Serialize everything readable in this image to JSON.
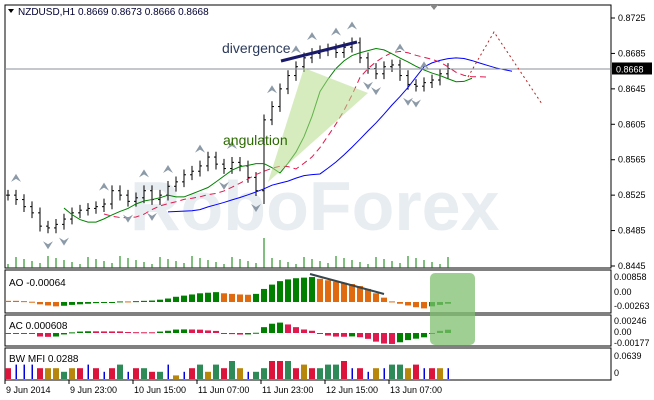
{
  "header": {
    "symbol": "NZDUSD,H1",
    "ohlc": "0.8669 0.8673 0.8666 0.8668"
  },
  "watermark": "RoboForex",
  "colors": {
    "bull_ao": "#007f00",
    "bear_ao": "#e06a10",
    "ac_up": "#007f00",
    "ac_down": "#e01a4f",
    "jaw": "#0000ff",
    "teeth": "#e01a4f",
    "lips": "#008000",
    "highlight": "#7fbf6f"
  },
  "chart_data": {
    "type": "bar",
    "title": "NZDUSD,H1",
    "price_axis": {
      "ticks": [
        "0.8725",
        "0.8685",
        "0.8645",
        "0.8605",
        "0.8565",
        "0.8525",
        "0.8485",
        "0.8445"
      ],
      "current": "0.8668",
      "ylim": [
        0.8445,
        0.8725
      ]
    },
    "time_axis": [
      "9 Jun 2014",
      "9 Jun 23:00",
      "10 Jun 15:00",
      "11 Jun 07:00",
      "11 Jun 23:00",
      "12 Jun 15:00",
      "13 Jun 07:00"
    ],
    "closes": [
      0.8525,
      0.852,
      0.8512,
      0.8505,
      0.849,
      0.8488,
      0.8492,
      0.8498,
      0.8505,
      0.8508,
      0.851,
      0.8512,
      0.8515,
      0.853,
      0.8525,
      0.8518,
      0.8522,
      0.853,
      0.852,
      0.8525,
      0.8535,
      0.854,
      0.8548,
      0.8552,
      0.8558,
      0.8568,
      0.856,
      0.8555,
      0.8562,
      0.8558,
      0.8545,
      0.853,
      0.861,
      0.8625,
      0.8645,
      0.866,
      0.867,
      0.868,
      0.8685,
      0.8688,
      0.869,
      0.8686,
      0.8692,
      0.8697,
      0.868,
      0.8668,
      0.8662,
      0.867,
      0.8672,
      0.866,
      0.865,
      0.8648,
      0.8652,
      0.8655,
      0.8662,
      0.8668
    ],
    "fractals_up": [
      1,
      12,
      17,
      20,
      24,
      28,
      33,
      36,
      38,
      41,
      43,
      49,
      52
    ],
    "fractals_down": [
      5,
      7,
      15,
      18,
      27,
      31,
      45,
      46,
      50,
      51
    ],
    "annotations": {
      "divergence": "divergence",
      "angulation": "angulation"
    },
    "ao": {
      "label": "AO -0.00064",
      "ticks": [
        "0.00858",
        "0.00",
        "-0.00263"
      ],
      "values": [
        0.0004,
        0.0004,
        0.0003,
        0.0001,
        -0.0008,
        -0.0012,
        -0.0015,
        -0.0013,
        -0.001,
        -0.0008,
        -0.0006,
        -0.0004,
        -0.0002,
        0,
        0.0002,
        0.0002,
        0.0003,
        0.0004,
        0.0005,
        0.0008,
        0.0012,
        0.0018,
        0.0022,
        0.0026,
        0.003,
        0.0032,
        0.0034,
        0.003,
        0.0028,
        0.0026,
        0.0025,
        0.0028,
        0.0045,
        0.006,
        0.0072,
        0.0078,
        0.0082,
        0.0084,
        0.0086,
        0.008,
        0.0075,
        0.007,
        0.0066,
        0.0062,
        0.0055,
        0.0045,
        0.003,
        0.0015,
        0.0002,
        -0.0006,
        -0.0012,
        -0.0018,
        -0.0022,
        -0.0015,
        -0.001,
        -0.0006
      ]
    },
    "ac": {
      "label": "AC 0.000608",
      "ticks": [
        "0.00246",
        "0.00",
        "-0.00177"
      ]
    },
    "mfi": {
      "label": "BW MFI 0.0288",
      "ticks": [
        "0.0639",
        "0"
      ],
      "values": [
        0.03,
        0.04,
        0.04,
        0.04,
        0.03,
        0.03,
        0.03,
        0.02,
        0.03,
        0.03,
        0.04,
        0.03,
        0.02,
        0.03,
        0.04,
        0.02,
        0.03,
        0.03,
        0.02,
        0.02,
        0.04,
        0.01,
        0.02,
        0.03,
        0.04,
        0.02,
        0.04,
        0.03,
        0.05,
        0.03,
        0.02,
        0.02,
        0.03,
        0.05,
        0.05,
        0.05,
        0.03,
        0.04,
        0.03,
        0.03,
        0.04,
        0.04,
        0.05,
        0.03,
        0.03,
        0.02,
        0.03,
        0.03,
        0.04,
        0.04,
        0.03,
        0.04,
        0.03,
        0.03,
        0.03,
        0.03
      ],
      "colors": [
        "r",
        "b",
        "b",
        "b",
        "r",
        "y",
        "y",
        "g",
        "y",
        "r",
        "b",
        "r",
        "b",
        "r",
        "g",
        "b",
        "r",
        "g",
        "r",
        "g",
        "b",
        "y",
        "b",
        "r",
        "g",
        "y",
        "g",
        "r",
        "g",
        "y",
        "b",
        "g",
        "g",
        "r",
        "r",
        "g",
        "r",
        "y",
        "r",
        "g",
        "g",
        "g",
        "r",
        "b",
        "r",
        "b",
        "y",
        "b",
        "g",
        "g",
        "y",
        "r",
        "b",
        "r",
        "y",
        "b"
      ]
    }
  }
}
